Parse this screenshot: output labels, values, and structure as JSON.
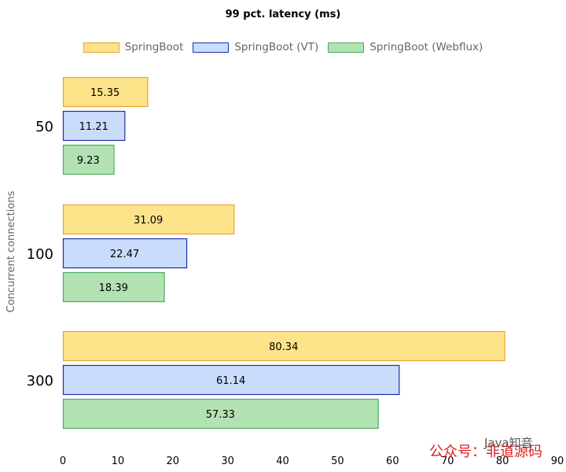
{
  "chart_data": {
    "type": "bar",
    "orientation": "horizontal",
    "title": "99 pct. latency (ms)",
    "ylabel": "Concurrent connections",
    "xlabel": "",
    "categories": [
      "50",
      "100",
      "300"
    ],
    "series": [
      {
        "name": "SpringBoot",
        "values": [
          15.35,
          31.09,
          80.34
        ],
        "fill": "#fde38a",
        "stroke": "#e8a32a"
      },
      {
        "name": "SpringBoot (VT)",
        "values": [
          11.21,
          22.47,
          61.14
        ],
        "fill": "#c9dcfb",
        "stroke": "#1d2fa8"
      },
      {
        "name": "SpringBoot (Webflux)",
        "values": [
          9.23,
          18.39,
          57.33
        ],
        "fill": "#b2e2b3",
        "stroke": "#4cae58"
      }
    ],
    "xlim": [
      0,
      90
    ],
    "xticks": [
      0,
      10,
      20,
      30,
      40,
      50,
      60,
      70,
      80,
      90
    ],
    "legend_position": "top",
    "grid": false
  },
  "watermark": {
    "text_cn": "公众号：非道源码",
    "text_en": "Java知音"
  }
}
